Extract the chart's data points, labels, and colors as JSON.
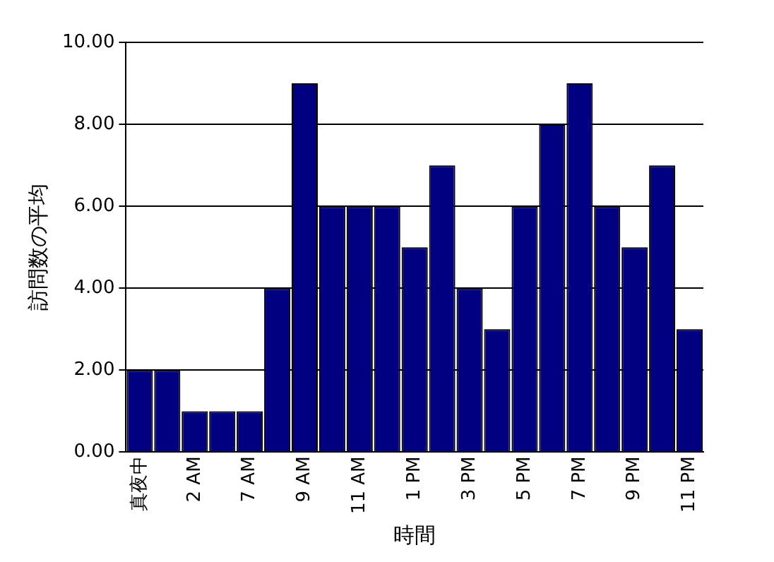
{
  "chart_data": {
    "type": "bar",
    "xlabel": "時間",
    "ylabel": "訪問数の平均",
    "categories": [
      "真夜中",
      null,
      "2 AM",
      null,
      "7 AM",
      null,
      "9 AM",
      null,
      "11 AM",
      null,
      "1 PM",
      null,
      "3 PM",
      null,
      "5 PM",
      null,
      "7 PM",
      null,
      "9 PM",
      null,
      "11 PM"
    ],
    "values": [
      2,
      2,
      1,
      1,
      1,
      4,
      9,
      6,
      6,
      6,
      5,
      7,
      4,
      3,
      6,
      8,
      9,
      6,
      5,
      7,
      3
    ],
    "color": "#000080",
    "ylim": [
      0,
      10
    ],
    "yticks": [
      {
        "value": 0,
        "label": "0.00"
      },
      {
        "value": 2,
        "label": "2.00"
      },
      {
        "value": 4,
        "label": "4.00"
      },
      {
        "value": 6,
        "label": "6.00"
      },
      {
        "value": 8,
        "label": "8.00"
      },
      {
        "value": 10,
        "label": "10.00"
      }
    ],
    "grid": "y",
    "legend": false
  }
}
